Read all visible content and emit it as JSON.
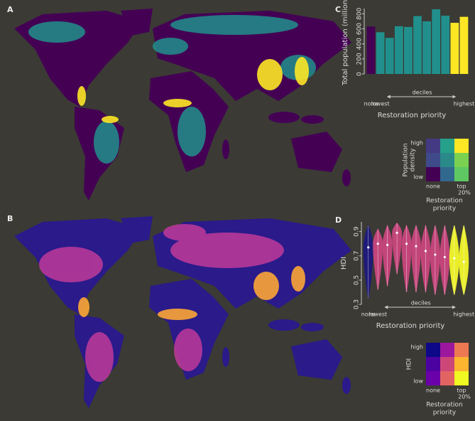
{
  "panels": {
    "a": "A",
    "b": "B",
    "c": "C",
    "d": "D"
  },
  "chart_data": [
    {
      "type": "bar",
      "ylabel": "Total population (million)",
      "xlabel": "Restoration priority",
      "annotation": "deciles",
      "categories": [
        "none",
        "lowest",
        null,
        null,
        null,
        null,
        null,
        null,
        null,
        null,
        "highest"
      ],
      "values": [
        630,
        555,
        480,
        635,
        625,
        770,
        700,
        860,
        775,
        680,
        760
      ],
      "colors": [
        "#440154",
        "#21908c",
        "#21908c",
        "#21908c",
        "#21908c",
        "#21908c",
        "#21908c",
        "#21908c",
        "#21908c",
        "#fde725",
        "#fde725"
      ],
      "ylim": [
        0,
        870
      ],
      "yticks": [
        0,
        200,
        400,
        600,
        800
      ]
    },
    {
      "type": "violin",
      "ylabel": "HDI",
      "xlabel": "Restoration priority",
      "annotation": "deciles",
      "categories": [
        "none",
        "lowest",
        null,
        null,
        null,
        null,
        null,
        null,
        null,
        null,
        "highest"
      ],
      "medians": [
        0.77,
        0.8,
        0.79,
        0.89,
        0.8,
        0.78,
        0.74,
        0.71,
        0.69,
        0.68,
        0.65
      ],
      "mins": [
        0.35,
        0.42,
        0.45,
        0.55,
        0.4,
        0.4,
        0.4,
        0.38,
        0.38,
        0.38,
        0.38
      ],
      "maxs": [
        0.95,
        0.92,
        0.95,
        0.97,
        0.95,
        0.95,
        0.95,
        0.95,
        0.95,
        0.95,
        0.95
      ],
      "colors": [
        "#1f1a7a",
        "#c2457a",
        "#c2457a",
        "#c2457a",
        "#c2457a",
        "#c2457a",
        "#c2457a",
        "#c2457a",
        "#c2457a",
        "#eaee2a",
        "#eaee2a"
      ],
      "ylim": [
        0.3,
        0.98
      ],
      "yticks": [
        0.3,
        0.5,
        0.7,
        0.9
      ]
    }
  ],
  "legends": [
    {
      "ylabel": [
        "Population",
        "density"
      ],
      "row_high": "high",
      "row_low": "low",
      "col_low": "none",
      "col_high": [
        "top",
        "20%"
      ],
      "xlabel": [
        "Restoration",
        "priority"
      ],
      "colors": [
        [
          "#443a83",
          "#25a08a",
          "#fde725"
        ],
        [
          "#3e4a89",
          "#2a8a8a",
          "#7ad151"
        ],
        [
          "#440154",
          "#31688e",
          "#5ec962"
        ]
      ]
    },
    {
      "ylabel": [
        "HDI"
      ],
      "row_high": "high",
      "row_low": "low",
      "col_low": "none",
      "col_high": [
        "top",
        "20%"
      ],
      "xlabel": [
        "Restoration",
        "priority"
      ],
      "colors": [
        [
          "#0d0887",
          "#9c179e",
          "#ed7953"
        ],
        [
          "#4c02a1",
          "#cc4778",
          "#fdb42f"
        ],
        [
          "#6a00a8",
          "#e16462",
          "#f0f921"
        ]
      ]
    }
  ]
}
